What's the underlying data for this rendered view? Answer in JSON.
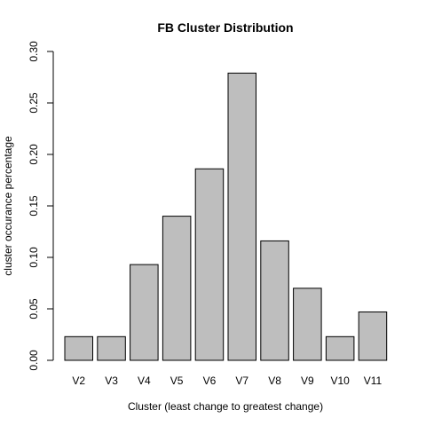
{
  "chart_data": {
    "type": "bar",
    "title": "FB Cluster Distribution",
    "xlabel": "Cluster (least change to greatest change)",
    "ylabel": "cluster occurance percentage",
    "categories": [
      "V2",
      "V3",
      "V4",
      "V5",
      "V6",
      "V7",
      "V8",
      "V9",
      "V10",
      "V11"
    ],
    "values": [
      0.023,
      0.023,
      0.093,
      0.14,
      0.186,
      0.279,
      0.116,
      0.07,
      0.023,
      0.047
    ],
    "ylim": [
      0,
      0.3
    ],
    "yticks": [
      "0.00",
      "0.05",
      "0.10",
      "0.15",
      "0.20",
      "0.25",
      "0.30"
    ],
    "bar_color": "#bebebe",
    "grid": false,
    "legend": "none"
  }
}
